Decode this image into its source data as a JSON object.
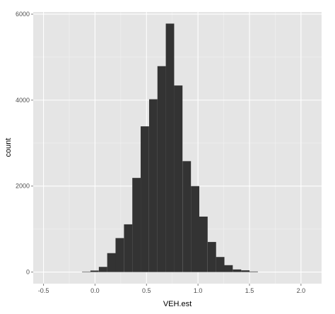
{
  "chart_data": {
    "type": "bar",
    "title": "",
    "xlabel": "VEH.est",
    "ylabel": "count",
    "xlim": [
      -0.6,
      2.2
    ],
    "ylim": [
      -270,
      6050
    ],
    "x_ticks": [
      -0.5,
      0.0,
      0.5,
      1.0,
      1.5,
      2.0
    ],
    "x_tick_labels": [
      "-0.5",
      "0.0",
      "0.5",
      "1.0",
      "1.5",
      "2.0"
    ],
    "y_ticks": [
      0,
      2000,
      4000,
      6000
    ],
    "y_tick_labels": [
      "0",
      "2000",
      "4000",
      "6000"
    ],
    "grid": true,
    "bin_width": 0.0813,
    "bins": [
      {
        "x": -0.085,
        "count": 10
      },
      {
        "x": -0.004,
        "count": 35
      },
      {
        "x": 0.078,
        "count": 120
      },
      {
        "x": 0.159,
        "count": 440
      },
      {
        "x": 0.24,
        "count": 790
      },
      {
        "x": 0.322,
        "count": 1110
      },
      {
        "x": 0.403,
        "count": 2190
      },
      {
        "x": 0.484,
        "count": 3390
      },
      {
        "x": 0.566,
        "count": 4020
      },
      {
        "x": 0.647,
        "count": 4790
      },
      {
        "x": 0.728,
        "count": 5780
      },
      {
        "x": 0.809,
        "count": 4340
      },
      {
        "x": 0.891,
        "count": 2580
      },
      {
        "x": 0.972,
        "count": 2000
      },
      {
        "x": 1.053,
        "count": 1290
      },
      {
        "x": 1.135,
        "count": 700
      },
      {
        "x": 1.216,
        "count": 350
      },
      {
        "x": 1.297,
        "count": 160
      },
      {
        "x": 1.379,
        "count": 60
      },
      {
        "x": 1.46,
        "count": 40
      },
      {
        "x": 1.541,
        "count": 12
      }
    ],
    "colors": {
      "panel": "#e5e5e5",
      "grid_major": "#ffffff",
      "grid_minor": "#f2f2f2",
      "bar": "#333333",
      "tick": "#7f7f7f"
    }
  }
}
